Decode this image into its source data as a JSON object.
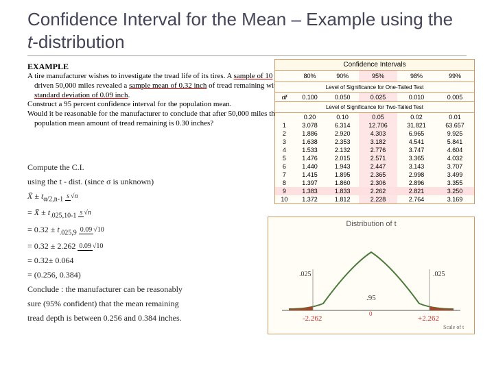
{
  "title_part1": "Confidence Interval for the Mean – Example using the ",
  "title_italic": "t",
  "title_part2": "-distribution",
  "example_label": "EXAMPLE",
  "para1a": "A tire manufacturer wishes to investigate the tread life of its tires. A ",
  "para1b": "sample of 10",
  "para1c": " tires driven 50,000 miles revealed a ",
  "para1d": "sample mean of 0.32 inch",
  "para1e": " of tread remaining with a ",
  "para1f": "standard deviation of 0.09 inch",
  "para1g": ".",
  "para2": "Construct a 95 percent confidence interval for the population mean.",
  "para3": "Would it be reasonable for the manufacturer to conclude that after 50,000 miles the population mean amount of tread remaining is 0.30 inches?",
  "formula": {
    "l1": "Compute the C.I.",
    "l2a": "using the t - dist. (since ",
    "l2b": " is unknown)",
    "l7": "= 0.32± 0.064",
    "l8": "= (0.256, 0.384)",
    "l9": "Conclude : the manufacturer can be reasonably",
    "l10": "sure (95% confident) that the mean remaining",
    "l11": "tread depth is between 0.256 and 0.384 inches."
  },
  "table": {
    "header": "Confidence Intervals",
    "ci_levels": [
      "80%",
      "90%",
      "95%",
      "98%",
      "99%"
    ],
    "one_tail_label": "Level of Significance for One-Tailed Test",
    "one_tail": [
      "0.100",
      "0.050",
      "0.025",
      "0.010",
      "0.005"
    ],
    "two_tail_label": "Level of Significance for Two-Tailed Test",
    "two_tail": [
      "0.20",
      "0.10",
      "0.05",
      "0.02",
      "0.01"
    ],
    "df_label": "df",
    "rows": [
      {
        "df": "1",
        "v": [
          "3.078",
          "6.314",
          "12.706",
          "31.821",
          "63.657"
        ]
      },
      {
        "df": "2",
        "v": [
          "1.886",
          "2.920",
          "4.303",
          "6.965",
          "9.925"
        ]
      },
      {
        "df": "3",
        "v": [
          "1.638",
          "2.353",
          "3.182",
          "4.541",
          "5.841"
        ]
      },
      {
        "df": "4",
        "v": [
          "1.533",
          "2.132",
          "2.776",
          "3.747",
          "4.604"
        ]
      },
      {
        "df": "5",
        "v": [
          "1.476",
          "2.015",
          "2.571",
          "3.365",
          "4.032"
        ]
      },
      {
        "df": "6",
        "v": [
          "1.440",
          "1.943",
          "2.447",
          "3.143",
          "3.707"
        ]
      },
      {
        "df": "7",
        "v": [
          "1.415",
          "1.895",
          "2.365",
          "2.998",
          "3.499"
        ]
      },
      {
        "df": "8",
        "v": [
          "1.397",
          "1.860",
          "2.306",
          "2.896",
          "3.355"
        ]
      },
      {
        "df": "9",
        "v": [
          "1.383",
          "1.833",
          "2.262",
          "2.821",
          "3.250"
        ]
      },
      {
        "df": "10",
        "v": [
          "1.372",
          "1.812",
          "2.228",
          "2.764",
          "3.169"
        ]
      }
    ],
    "highlight_col": 2,
    "highlight_row": 8
  },
  "curve": {
    "title": "Distribution of t",
    "left_tail": ".025",
    "right_tail": ".025",
    "center": ".95",
    "left_val": "-2.262",
    "right_val": "+2.262",
    "axis_label": "Scale of t",
    "curve_color": "#4a7a3a",
    "tail_fill": "#a04a2a",
    "accent": "#cc3333"
  }
}
